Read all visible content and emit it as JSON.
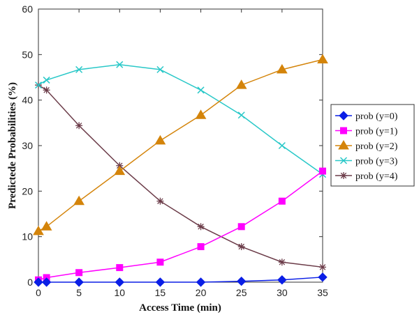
{
  "chart_data": {
    "type": "line",
    "title": "",
    "xlabel": "Access Time (min)",
    "ylabel": "Predictede Probabilities (%)",
    "xlim": [
      0,
      35
    ],
    "ylim": [
      0,
      60
    ],
    "xticks": [
      0,
      5,
      10,
      15,
      20,
      25,
      30,
      35
    ],
    "yticks": [
      0,
      10,
      20,
      30,
      40,
      50,
      60
    ],
    "grid": false,
    "legend_position": "right",
    "x": [
      0,
      1,
      5,
      10,
      15,
      20,
      25,
      30,
      35
    ],
    "series": [
      {
        "name": "prob (y=0)",
        "color": "#0a1ee6",
        "marker": "diamond",
        "values": [
          0.0,
          0.0,
          0.0,
          0.0,
          0.0,
          0.0,
          0.2,
          0.5,
          1.1
        ]
      },
      {
        "name": "prob (y=1)",
        "color": "#ff00ff",
        "marker": "square",
        "values": [
          0.5,
          1.0,
          2.1,
          3.2,
          4.4,
          7.8,
          12.2,
          17.8,
          24.4
        ]
      },
      {
        "name": "prob (y=2)",
        "color": "#d4840a",
        "marker": "triangle",
        "values": [
          11.2,
          12.2,
          17.8,
          24.4,
          31.1,
          36.7,
          43.3,
          46.7,
          48.9
        ]
      },
      {
        "name": "prob (y=3)",
        "color": "#29c8c8",
        "marker": "x",
        "values": [
          43.3,
          44.4,
          46.7,
          47.8,
          46.7,
          42.2,
          36.7,
          30.0,
          23.7
        ]
      },
      {
        "name": "prob (y=4)",
        "color": "#6b3b48",
        "marker": "star",
        "values": [
          43.3,
          42.2,
          34.4,
          25.6,
          17.8,
          12.2,
          7.8,
          4.4,
          3.3
        ]
      }
    ]
  }
}
